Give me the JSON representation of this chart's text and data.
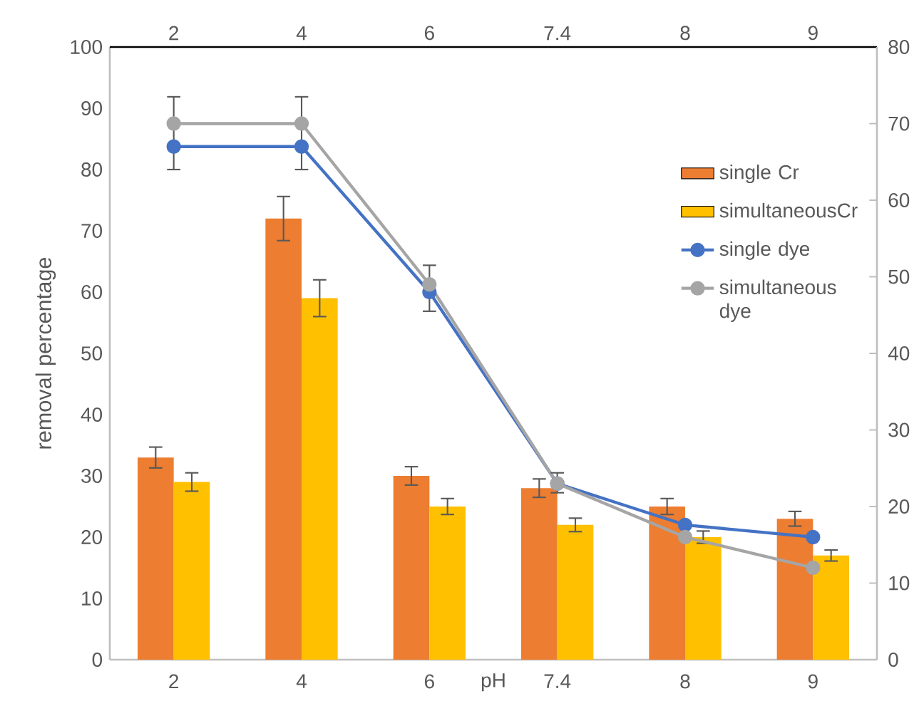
{
  "chart_data": {
    "type": "bar",
    "xlabel": "pH",
    "ylabel": "removal percentage",
    "categories": [
      "2",
      "4",
      "6",
      "7.4",
      "8",
      "9"
    ],
    "ylim": [
      0,
      100
    ],
    "yticks": [
      0,
      10,
      20,
      30,
      40,
      50,
      60,
      70,
      80,
      90,
      100
    ],
    "y2lim": [
      0,
      80
    ],
    "y2ticks": [
      0,
      10,
      20,
      30,
      40,
      50,
      60,
      70,
      80
    ],
    "legend": "right",
    "series": [
      {
        "name": "single Cr",
        "color": "#ed7d31",
        "values": [
          33,
          72,
          30,
          28,
          25,
          23
        ],
        "errors": [
          1.7,
          3.6,
          1.5,
          1.5,
          1.3,
          1.2
        ]
      },
      {
        "name": "simultaneousCr",
        "color": "#ffc000",
        "values": [
          29,
          59,
          25,
          22,
          20,
          17
        ],
        "errors": [
          1.5,
          3,
          1.3,
          1.1,
          1,
          0.9
        ]
      },
      {
        "name": "single dye",
        "type": "line",
        "axis": "y2",
        "marker": "circle",
        "color": "#4472c4",
        "values": [
          67,
          67,
          48,
          23,
          17.6,
          16
        ]
      },
      {
        "name": "simultaneous dye",
        "type": "line",
        "axis": "y2",
        "marker": "circle",
        "color": "#a5a5a5",
        "values": [
          70,
          70,
          49,
          23,
          16,
          12
        ],
        "errors": [
          [
            64,
            73.5
          ],
          [
            64,
            73.5
          ],
          [
            45.5,
            51.5
          ],
          [
            21.8,
            24.4
          ],
          null,
          null
        ]
      }
    ]
  }
}
